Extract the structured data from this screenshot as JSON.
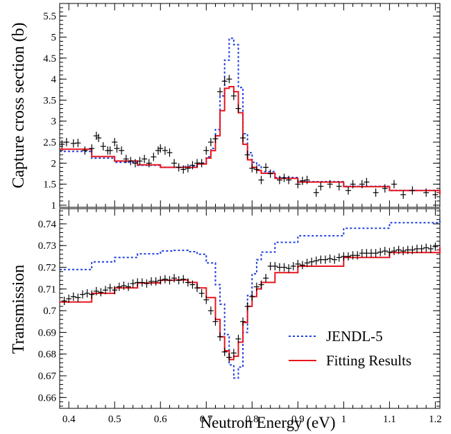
{
  "chart_data": [
    {
      "type": "line",
      "panel": "top",
      "ylabel": "Capture cross section (b)",
      "xlabel": "",
      "xlim": [
        0.38,
        1.21
      ],
      "ylim": [
        0.95,
        5.8
      ],
      "y_ticks": [
        "1",
        "1.5",
        "2",
        "2.5",
        "3",
        "3.5",
        "4",
        "4.5",
        "5",
        "5.5"
      ],
      "grid": false,
      "series": [
        {
          "role": "jendl",
          "color": "#1f3fe0",
          "style": "dotted",
          "x": [
            0.38,
            0.45,
            0.5,
            0.55,
            0.6,
            0.65,
            0.68,
            0.7,
            0.71,
            0.72,
            0.73,
            0.74,
            0.75,
            0.76,
            0.77,
            0.78,
            0.79,
            0.8,
            0.81,
            0.82,
            0.85,
            0.9,
            1.0,
            1.1,
            1.21
          ],
          "y": [
            2.28,
            2.12,
            2.02,
            1.95,
            1.9,
            1.92,
            2.0,
            2.15,
            2.35,
            2.8,
            3.6,
            4.45,
            4.97,
            4.82,
            3.8,
            2.7,
            2.25,
            2.02,
            1.95,
            1.8,
            1.66,
            1.56,
            1.45,
            1.35,
            1.25
          ]
        },
        {
          "role": "fit",
          "color": "#e8141e",
          "style": "solid",
          "x": [
            0.38,
            0.45,
            0.5,
            0.55,
            0.6,
            0.65,
            0.68,
            0.7,
            0.71,
            0.72,
            0.73,
            0.74,
            0.75,
            0.76,
            0.77,
            0.78,
            0.79,
            0.8,
            0.81,
            0.82,
            0.85,
            0.9,
            1.0,
            1.1,
            1.21
          ],
          "y": [
            2.33,
            2.16,
            2.05,
            1.96,
            1.9,
            1.9,
            1.98,
            2.12,
            2.3,
            2.65,
            3.25,
            3.78,
            3.82,
            3.7,
            3.2,
            2.45,
            2.08,
            1.9,
            1.83,
            1.76,
            1.64,
            1.55,
            1.44,
            1.35,
            1.26
          ]
        },
        {
          "role": "data",
          "color": "#000000",
          "style": "crosses",
          "x": [
            0.385,
            0.395,
            0.41,
            0.42,
            0.435,
            0.45,
            0.46,
            0.465,
            0.475,
            0.485,
            0.49,
            0.5,
            0.505,
            0.515,
            0.525,
            0.535,
            0.545,
            0.555,
            0.565,
            0.575,
            0.585,
            0.595,
            0.6,
            0.61,
            0.62,
            0.63,
            0.64,
            0.65,
            0.66,
            0.67,
            0.68,
            0.69,
            0.7,
            0.71,
            0.72,
            0.73,
            0.74,
            0.75,
            0.76,
            0.77,
            0.78,
            0.79,
            0.8,
            0.81,
            0.82,
            0.83,
            0.84,
            0.86,
            0.87,
            0.88,
            0.9,
            0.91,
            0.92,
            0.94,
            0.95,
            0.97,
            0.99,
            1.01,
            1.02,
            1.04,
            1.05,
            1.07,
            1.09,
            1.11,
            1.13,
            1.15,
            1.18,
            1.2
          ],
          "y": [
            2.45,
            2.5,
            2.47,
            2.48,
            2.3,
            2.35,
            2.65,
            2.6,
            2.4,
            2.3,
            2.3,
            2.5,
            2.35,
            2.3,
            2.1,
            2.05,
            2.0,
            2.05,
            2.1,
            2.0,
            2.15,
            2.3,
            2.35,
            2.3,
            2.25,
            2.0,
            1.9,
            1.85,
            1.88,
            1.95,
            2.0,
            2.0,
            2.3,
            2.5,
            2.58,
            3.7,
            3.95,
            4.0,
            3.6,
            3.3,
            2.6,
            2.2,
            1.88,
            1.85,
            1.6,
            1.9,
            1.75,
            1.6,
            1.65,
            1.6,
            1.5,
            1.58,
            1.6,
            1.3,
            1.45,
            1.5,
            1.45,
            1.35,
            1.5,
            1.5,
            1.55,
            1.3,
            1.4,
            1.5,
            1.25,
            1.35,
            1.3,
            1.25
          ]
        }
      ]
    },
    {
      "type": "line",
      "panel": "bottom",
      "ylabel": "Transmission",
      "xlabel": "Neutron Energy (eV)",
      "xlim": [
        0.38,
        1.21
      ],
      "ylim": [
        0.655,
        0.747
      ],
      "x_ticks": [
        "0.4",
        "0.5",
        "0.6",
        "0.7",
        "0.8",
        "0.9",
        "1",
        "1.1",
        "1.2"
      ],
      "y_ticks": [
        "0.66",
        "0.67",
        "0.68",
        "0.69",
        "0.7",
        "0.71",
        "0.72",
        "0.73",
        "0.74"
      ],
      "grid": false,
      "legend_position": "bottom-right",
      "series": [
        {
          "name": "JENDL-5",
          "role": "jendl",
          "color": "#1f3fe0",
          "style": "dotted",
          "x": [
            0.38,
            0.45,
            0.5,
            0.55,
            0.6,
            0.63,
            0.66,
            0.68,
            0.7,
            0.72,
            0.73,
            0.74,
            0.75,
            0.76,
            0.77,
            0.78,
            0.79,
            0.8,
            0.81,
            0.82,
            0.85,
            0.9,
            1.0,
            1.1,
            1.21
          ],
          "y": [
            0.719,
            0.7225,
            0.7245,
            0.7262,
            0.7275,
            0.7278,
            0.7272,
            0.726,
            0.722,
            0.712,
            0.703,
            0.689,
            0.675,
            0.669,
            0.674,
            0.69,
            0.707,
            0.717,
            0.7235,
            0.727,
            0.7315,
            0.7345,
            0.738,
            0.7405,
            0.7428
          ]
        },
        {
          "name": "Fitting Results",
          "role": "fit",
          "color": "#e8141e",
          "style": "solid",
          "x": [
            0.38,
            0.45,
            0.5,
            0.55,
            0.6,
            0.63,
            0.66,
            0.68,
            0.7,
            0.72,
            0.73,
            0.74,
            0.75,
            0.76,
            0.77,
            0.78,
            0.79,
            0.8,
            0.81,
            0.82,
            0.85,
            0.9,
            1.0,
            1.1,
            1.21
          ],
          "y": [
            0.704,
            0.708,
            0.7105,
            0.7128,
            0.714,
            0.7142,
            0.713,
            0.7105,
            0.706,
            0.696,
            0.688,
            0.6815,
            0.6775,
            0.679,
            0.6855,
            0.6945,
            0.702,
            0.7065,
            0.71,
            0.713,
            0.7175,
            0.7205,
            0.7245,
            0.7268,
            0.7292
          ]
        },
        {
          "role": "data",
          "color": "#000000",
          "style": "crosses",
          "x": [
            0.39,
            0.4,
            0.41,
            0.42,
            0.43,
            0.44,
            0.45,
            0.46,
            0.47,
            0.48,
            0.49,
            0.5,
            0.51,
            0.52,
            0.53,
            0.54,
            0.55,
            0.56,
            0.57,
            0.58,
            0.59,
            0.6,
            0.61,
            0.62,
            0.63,
            0.64,
            0.65,
            0.66,
            0.67,
            0.68,
            0.69,
            0.7,
            0.71,
            0.72,
            0.73,
            0.74,
            0.75,
            0.76,
            0.77,
            0.78,
            0.79,
            0.8,
            0.81,
            0.82,
            0.83,
            0.84,
            0.85,
            0.86,
            0.87,
            0.88,
            0.89,
            0.9,
            0.91,
            0.92,
            0.93,
            0.94,
            0.95,
            0.96,
            0.97,
            0.98,
            0.99,
            1.0,
            1.01,
            1.02,
            1.03,
            1.04,
            1.05,
            1.06,
            1.07,
            1.08,
            1.09,
            1.1,
            1.11,
            1.12,
            1.13,
            1.14,
            1.15,
            1.16,
            1.17,
            1.18,
            1.19,
            1.2
          ],
          "y": [
            0.7045,
            0.7055,
            0.7065,
            0.706,
            0.7075,
            0.708,
            0.7075,
            0.709,
            0.7085,
            0.7095,
            0.7105,
            0.7095,
            0.711,
            0.7115,
            0.711,
            0.7125,
            0.713,
            0.713,
            0.7125,
            0.7135,
            0.7135,
            0.714,
            0.7145,
            0.714,
            0.715,
            0.714,
            0.7145,
            0.713,
            0.712,
            0.7105,
            0.708,
            0.705,
            0.7,
            0.695,
            0.688,
            0.681,
            0.6785,
            0.6805,
            0.687,
            0.695,
            0.702,
            0.7065,
            0.711,
            0.712,
            0.715,
            0.7205,
            0.7205,
            0.72,
            0.72,
            0.7195,
            0.7205,
            0.7215,
            0.721,
            0.722,
            0.7225,
            0.723,
            0.7235,
            0.7235,
            0.724,
            0.7235,
            0.7245,
            0.725,
            0.725,
            0.7255,
            0.7255,
            0.7265,
            0.7265,
            0.7265,
            0.7265,
            0.727,
            0.7275,
            0.727,
            0.7275,
            0.728,
            0.7275,
            0.728,
            0.728,
            0.7285,
            0.7285,
            0.729,
            0.7285,
            0.7295
          ]
        }
      ]
    }
  ]
}
